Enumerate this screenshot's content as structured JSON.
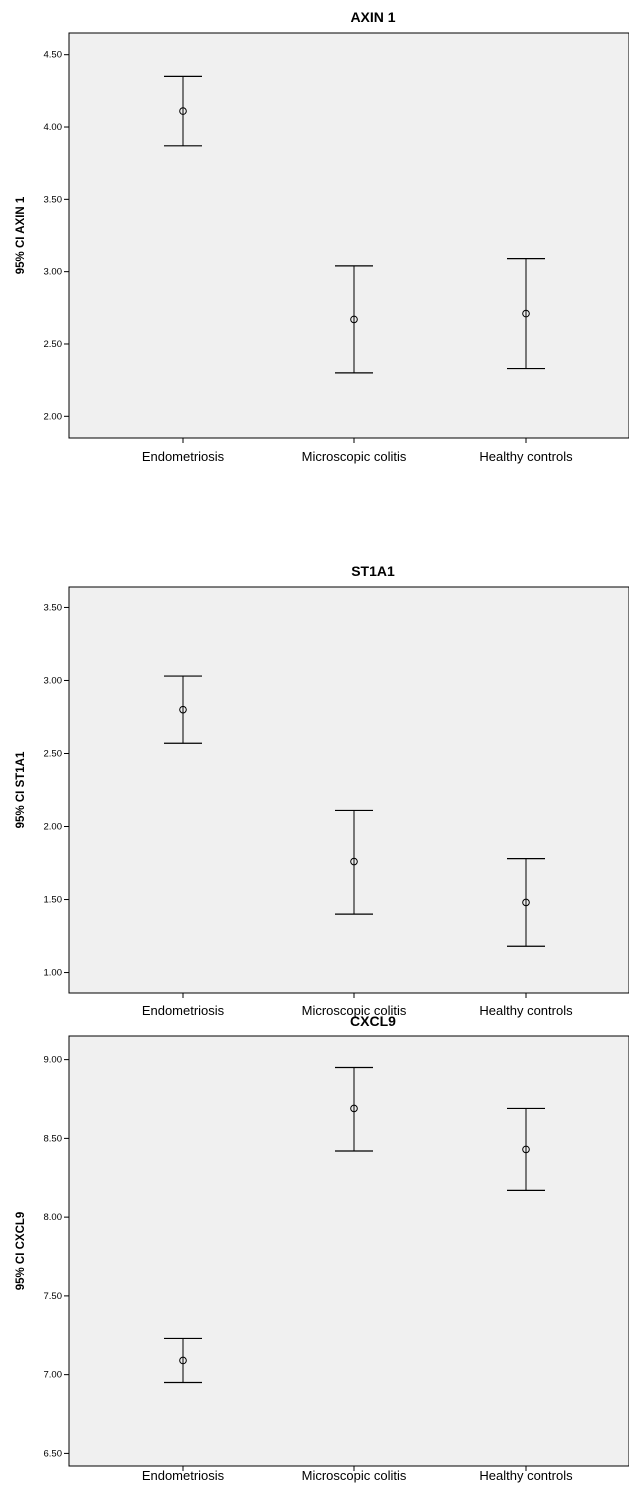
{
  "chart_data": [
    {
      "type": "errorbar",
      "title": "AXIN 1",
      "ylabel": "95% CI AXIN 1",
      "xlabel": "",
      "categories": [
        "Endometriosis",
        "Microscopic colitis",
        "Healthy controls"
      ],
      "mean": [
        4.11,
        2.67,
        2.71
      ],
      "lower": [
        3.87,
        2.3,
        2.33
      ],
      "upper": [
        4.35,
        3.04,
        3.09
      ],
      "ylim": [
        1.85,
        4.65
      ],
      "yticks": [
        2.0,
        2.5,
        3.0,
        3.5,
        4.0,
        4.5
      ],
      "ytick_labels": [
        "2.00",
        "2.50",
        "3.00",
        "3.50",
        "4.00",
        "4.50"
      ],
      "grid": false
    },
    {
      "type": "errorbar",
      "title": "ST1A1",
      "ylabel": "95% CI ST1A1",
      "xlabel": "",
      "categories": [
        "Endometriosis",
        "Microscopic colitis",
        "Healthy controls"
      ],
      "mean": [
        2.8,
        1.76,
        1.48
      ],
      "lower": [
        2.57,
        1.4,
        1.18
      ],
      "upper": [
        3.03,
        2.11,
        1.78
      ],
      "ylim": [
        0.86,
        3.64
      ],
      "yticks": [
        1.0,
        1.5,
        2.0,
        2.5,
        3.0,
        3.5
      ],
      "ytick_labels": [
        "1.00",
        "1.50",
        "2.00",
        "2.50",
        "3.00",
        "3.50"
      ],
      "grid": false
    },
    {
      "type": "errorbar",
      "title": "CXCL9",
      "ylabel": "95% CI CXCL9",
      "xlabel": "",
      "categories": [
        "Endometriosis",
        "Microscopic colitis",
        "Healthy controls"
      ],
      "mean": [
        7.09,
        8.69,
        8.43
      ],
      "lower": [
        6.95,
        8.42,
        8.17
      ],
      "upper": [
        7.23,
        8.95,
        8.69
      ],
      "ylim": [
        6.42,
        9.15
      ],
      "yticks": [
        6.5,
        7.0,
        7.5,
        8.0,
        8.5,
        9.0
      ],
      "ytick_labels": [
        "6.50",
        "7.00",
        "7.50",
        "8.00",
        "8.50",
        "9.00"
      ],
      "grid": false
    }
  ]
}
